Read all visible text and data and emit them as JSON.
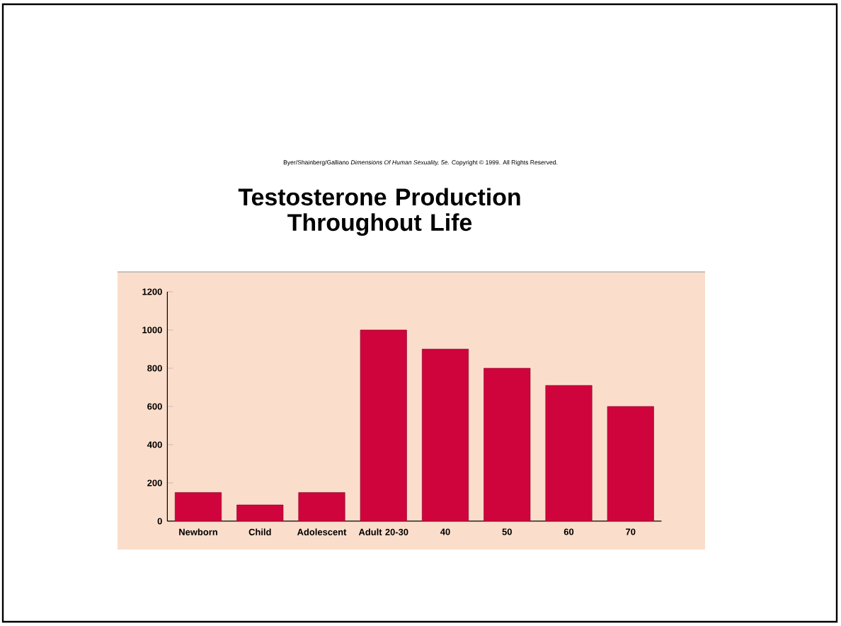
{
  "chart_data": {
    "type": "bar",
    "title": "Testosterone Production Throughout Life",
    "annotations": [
      "Byer/Shainberg/Galliano   *Dimensions Of Human Sexuality, 5e.* Copyright © 1999. All Rights Reserved."
    ],
    "categories": [
      "Newborn",
      "Child",
      "Adolescent",
      "Adult 20-30",
      "40",
      "50",
      "60",
      "70"
    ],
    "values": [
      150,
      85,
      150,
      1000,
      900,
      800,
      710,
      600
    ],
    "color": "#d0043c",
    "ylim": [
      0,
      1200
    ],
    "yticks": [
      0,
      200,
      400,
      600,
      800,
      1000,
      1200
    ]
  }
}
